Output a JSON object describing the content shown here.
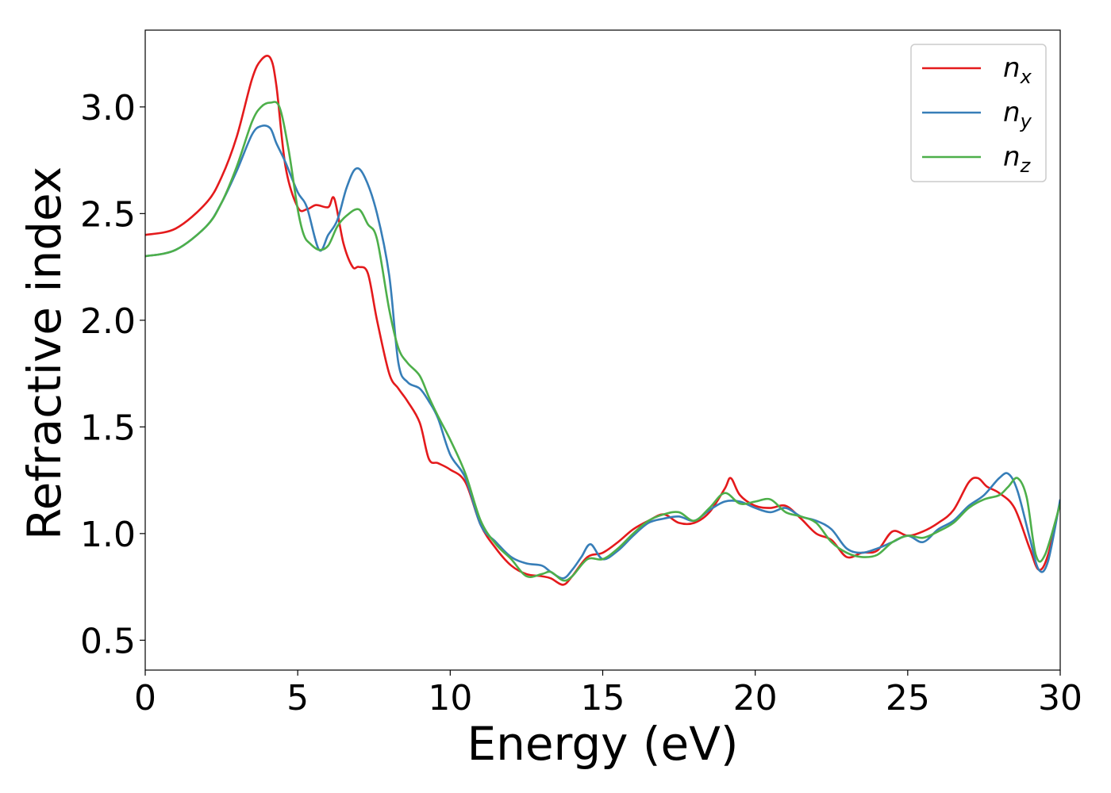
{
  "chart_data": {
    "type": "line",
    "xlabel": "Energy (eV)",
    "ylabel": "Refractive index",
    "xlim": [
      0,
      30
    ],
    "ylim": [
      0.36,
      3.36
    ],
    "xticks": [
      "0",
      "5",
      "10",
      "15",
      "20",
      "25",
      "30"
    ],
    "yticks": [
      "0.5",
      "1.0",
      "1.5",
      "2.0",
      "2.5",
      "3.0"
    ],
    "grid": false,
    "legend_position": "top-right",
    "series": [
      {
        "name": "n",
        "subscript": "x",
        "color": "#e41a1c",
        "x": [
          0,
          1,
          2,
          2.5,
          3,
          3.5,
          3.8,
          4.1,
          4.3,
          4.6,
          5.0,
          5.3,
          5.6,
          6.0,
          6.2,
          6.5,
          6.8,
          7.0,
          7.3,
          7.6,
          8.0,
          8.3,
          8.6,
          9.0,
          9.3,
          9.6,
          10.0,
          10.5,
          11.0,
          11.5,
          12.0,
          12.5,
          13.0,
          13.3,
          13.7,
          14.0,
          14.5,
          15.0,
          15.5,
          16.0,
          16.5,
          17.0,
          17.5,
          18.0,
          18.5,
          19.0,
          19.2,
          19.5,
          20.0,
          20.5,
          21.0,
          21.5,
          22.0,
          22.5,
          23.0,
          23.5,
          24.0,
          24.5,
          25.0,
          25.5,
          26.0,
          26.5,
          27.0,
          27.3,
          27.6,
          28.0,
          28.5,
          29.0,
          29.3,
          29.6,
          30.0
        ],
        "y": [
          2.4,
          2.43,
          2.55,
          2.67,
          2.86,
          3.13,
          3.22,
          3.23,
          3.1,
          2.72,
          2.53,
          2.52,
          2.54,
          2.53,
          2.57,
          2.36,
          2.25,
          2.25,
          2.22,
          2.0,
          1.75,
          1.68,
          1.62,
          1.52,
          1.35,
          1.33,
          1.3,
          1.24,
          1.04,
          0.93,
          0.85,
          0.81,
          0.8,
          0.79,
          0.76,
          0.8,
          0.89,
          0.91,
          0.96,
          1.02,
          1.06,
          1.09,
          1.05,
          1.05,
          1.1,
          1.21,
          1.26,
          1.18,
          1.13,
          1.12,
          1.13,
          1.07,
          1.0,
          0.97,
          0.89,
          0.91,
          0.92,
          1.01,
          0.99,
          1.01,
          1.05,
          1.11,
          1.24,
          1.26,
          1.22,
          1.19,
          1.12,
          0.93,
          0.83,
          0.9,
          1.15
        ]
      },
      {
        "name": "n",
        "subscript": "y",
        "color": "#377eb8",
        "x": [
          0,
          1,
          2,
          2.5,
          3,
          3.5,
          3.8,
          4.1,
          4.3,
          4.6,
          5.0,
          5.3,
          5.7,
          6.0,
          6.3,
          6.6,
          6.9,
          7.2,
          7.6,
          8.0,
          8.3,
          8.6,
          9.0,
          9.3,
          9.6,
          10.0,
          10.5,
          11.0,
          11.5,
          12.0,
          12.5,
          13.0,
          13.3,
          13.7,
          14.0,
          14.3,
          14.6,
          15.0,
          15.5,
          16.0,
          16.5,
          17.0,
          17.5,
          18.0,
          18.5,
          19.0,
          19.5,
          20.0,
          20.5,
          21.0,
          21.5,
          22.0,
          22.5,
          23.0,
          23.5,
          24.0,
          24.5,
          25.0,
          25.5,
          26.0,
          26.5,
          27.0,
          27.5,
          28.0,
          28.3,
          28.6,
          29.0,
          29.3,
          29.6,
          30.0
        ],
        "y": [
          2.3,
          2.33,
          2.44,
          2.55,
          2.7,
          2.87,
          2.91,
          2.9,
          2.83,
          2.74,
          2.6,
          2.53,
          2.33,
          2.4,
          2.47,
          2.62,
          2.71,
          2.67,
          2.5,
          2.21,
          1.8,
          1.71,
          1.68,
          1.62,
          1.54,
          1.37,
          1.26,
          1.04,
          0.96,
          0.89,
          0.86,
          0.85,
          0.82,
          0.79,
          0.83,
          0.89,
          0.95,
          0.88,
          0.92,
          0.99,
          1.05,
          1.07,
          1.08,
          1.06,
          1.11,
          1.15,
          1.15,
          1.12,
          1.1,
          1.12,
          1.08,
          1.06,
          1.02,
          0.93,
          0.91,
          0.93,
          0.96,
          0.99,
          0.96,
          1.02,
          1.06,
          1.13,
          1.18,
          1.26,
          1.28,
          1.2,
          0.98,
          0.83,
          0.87,
          1.16
        ]
      },
      {
        "name": "n",
        "subscript": "z",
        "color": "#4daf4a",
        "x": [
          0,
          1,
          2,
          2.5,
          3,
          3.5,
          3.8,
          4.1,
          4.4,
          4.7,
          5.0,
          5.2,
          5.4,
          5.7,
          6.0,
          6.3,
          6.6,
          7.0,
          7.3,
          7.6,
          8.0,
          8.3,
          8.6,
          9.0,
          9.3,
          9.6,
          10.0,
          10.5,
          11.0,
          11.5,
          12.0,
          12.5,
          13.0,
          13.3,
          13.7,
          14.0,
          14.5,
          15.0,
          15.5,
          16.0,
          16.5,
          17.0,
          17.5,
          18.0,
          18.5,
          19.0,
          19.5,
          20.0,
          20.5,
          21.0,
          21.5,
          22.0,
          22.5,
          23.0,
          23.5,
          24.0,
          24.5,
          25.0,
          25.5,
          26.0,
          26.5,
          27.0,
          27.5,
          28.0,
          28.3,
          28.6,
          28.9,
          29.2,
          29.5,
          30.0
        ],
        "y": [
          2.3,
          2.33,
          2.44,
          2.55,
          2.72,
          2.93,
          3.0,
          3.02,
          3.0,
          2.8,
          2.52,
          2.4,
          2.36,
          2.33,
          2.35,
          2.44,
          2.49,
          2.52,
          2.45,
          2.38,
          2.05,
          1.87,
          1.8,
          1.74,
          1.64,
          1.55,
          1.44,
          1.28,
          1.06,
          0.95,
          0.88,
          0.8,
          0.81,
          0.82,
          0.78,
          0.8,
          0.88,
          0.88,
          0.93,
          1.0,
          1.06,
          1.09,
          1.1,
          1.06,
          1.12,
          1.19,
          1.14,
          1.15,
          1.16,
          1.1,
          1.08,
          1.05,
          0.96,
          0.91,
          0.89,
          0.9,
          0.96,
          0.99,
          0.98,
          1.01,
          1.05,
          1.12,
          1.16,
          1.18,
          1.22,
          1.26,
          1.17,
          0.9,
          0.9,
          1.14
        ]
      }
    ]
  }
}
